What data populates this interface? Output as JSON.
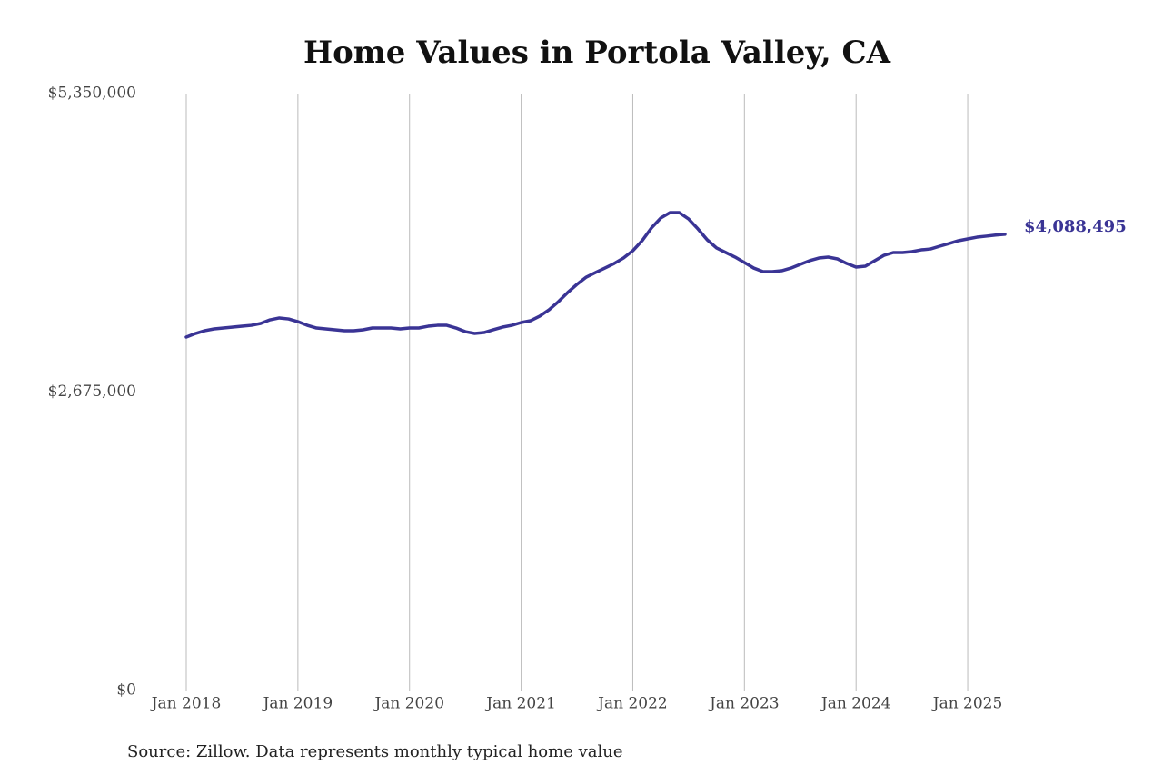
{
  "chart_data": {
    "type": "line",
    "title": "Home Values in Portola Valley, CA",
    "source": "Source: Zillow. Data represents monthly typical home value",
    "color": "#3a3495",
    "x": [
      "2018-01",
      "2018-02",
      "2018-03",
      "2018-04",
      "2018-05",
      "2018-06",
      "2018-07",
      "2018-08",
      "2018-09",
      "2018-10",
      "2018-11",
      "2018-12",
      "2019-01",
      "2019-02",
      "2019-03",
      "2019-04",
      "2019-05",
      "2019-06",
      "2019-07",
      "2019-08",
      "2019-09",
      "2019-10",
      "2019-11",
      "2019-12",
      "2020-01",
      "2020-02",
      "2020-03",
      "2020-04",
      "2020-05",
      "2020-06",
      "2020-07",
      "2020-08",
      "2020-09",
      "2020-10",
      "2020-11",
      "2020-12",
      "2021-01",
      "2021-02",
      "2021-03",
      "2021-04",
      "2021-05",
      "2021-06",
      "2021-07",
      "2021-08",
      "2021-09",
      "2021-10",
      "2021-11",
      "2021-12",
      "2022-01",
      "2022-02",
      "2022-03",
      "2022-04",
      "2022-05",
      "2022-06",
      "2022-07",
      "2022-08",
      "2022-09",
      "2022-10",
      "2022-11",
      "2022-12",
      "2023-01",
      "2023-02",
      "2023-03",
      "2023-04",
      "2023-05",
      "2023-06",
      "2023-07",
      "2023-08",
      "2023-09",
      "2023-10",
      "2023-11",
      "2023-12",
      "2024-01",
      "2024-02",
      "2024-03",
      "2024-04",
      "2024-05",
      "2024-06",
      "2024-07",
      "2024-08",
      "2024-09",
      "2024-10",
      "2024-11",
      "2024-12",
      "2025-01",
      "2025-02",
      "2025-03",
      "2025-04",
      "2025-05"
    ],
    "values": [
      3168000,
      3200000,
      3225000,
      3241000,
      3249000,
      3257000,
      3265000,
      3273000,
      3290000,
      3322000,
      3339000,
      3330000,
      3306000,
      3273000,
      3249000,
      3241000,
      3233000,
      3225000,
      3225000,
      3233000,
      3249000,
      3249000,
      3249000,
      3241000,
      3249000,
      3249000,
      3265000,
      3273000,
      3273000,
      3249000,
      3216000,
      3200000,
      3208000,
      3233000,
      3257000,
      3273000,
      3298000,
      3314000,
      3355000,
      3412000,
      3485000,
      3567000,
      3640000,
      3705000,
      3746000,
      3786000,
      3827000,
      3876000,
      3941000,
      4031000,
      4145000,
      4234000,
      4283000,
      4283000,
      4226000,
      4137000,
      4039000,
      3966000,
      3925000,
      3884000,
      3835000,
      3786000,
      3754000,
      3754000,
      3762000,
      3786000,
      3819000,
      3852000,
      3876000,
      3884000,
      3868000,
      3827000,
      3795000,
      3803000,
      3852000,
      3900000,
      3925000,
      3925000,
      3933000,
      3949000,
      3957000,
      3982000,
      4006000,
      4031000,
      4047000,
      4063000,
      4072000,
      4082000,
      4088495
    ],
    "value_labels": [
      null,
      null,
      null,
      null,
      null,
      null,
      null,
      null,
      null,
      null,
      null,
      null,
      null,
      null,
      null,
      null,
      null,
      null,
      null,
      null,
      null,
      null,
      null,
      null,
      null,
      null,
      null,
      null,
      null,
      null,
      null,
      null,
      null,
      null,
      null,
      null,
      null,
      null,
      null,
      null,
      null,
      null,
      null,
      null,
      null,
      null,
      null,
      null,
      null,
      null,
      null,
      null,
      null,
      null,
      null,
      null,
      null,
      null,
      null,
      null,
      null,
      null,
      null,
      null,
      null,
      null,
      null,
      null,
      null,
      null,
      null,
      null,
      null,
      null,
      null,
      null,
      null,
      null,
      null,
      null,
      null,
      null,
      null,
      null,
      null,
      null,
      null,
      null,
      "$4,088,495"
    ],
    "xlim": [
      "2018-01",
      "2025-05"
    ],
    "xticks": [
      {
        "value": "2018-01",
        "label": "Jan 2018"
      },
      {
        "value": "2019-01",
        "label": "Jan 2019"
      },
      {
        "value": "2020-01",
        "label": "Jan 2020"
      },
      {
        "value": "2021-01",
        "label": "Jan 2021"
      },
      {
        "value": "2022-01",
        "label": "Jan 2022"
      },
      {
        "value": "2023-01",
        "label": "Jan 2023"
      },
      {
        "value": "2024-01",
        "label": "Jan 2024"
      },
      {
        "value": "2025-01",
        "label": "Jan 2025"
      }
    ],
    "ylim": [
      0,
      5350000
    ],
    "yticks": [
      {
        "value": 0,
        "label": "$0"
      },
      {
        "value": 2675000,
        "label": "$2,675,000"
      },
      {
        "value": 5350000,
        "label": "$5,350,000"
      }
    ],
    "grid": true
  }
}
